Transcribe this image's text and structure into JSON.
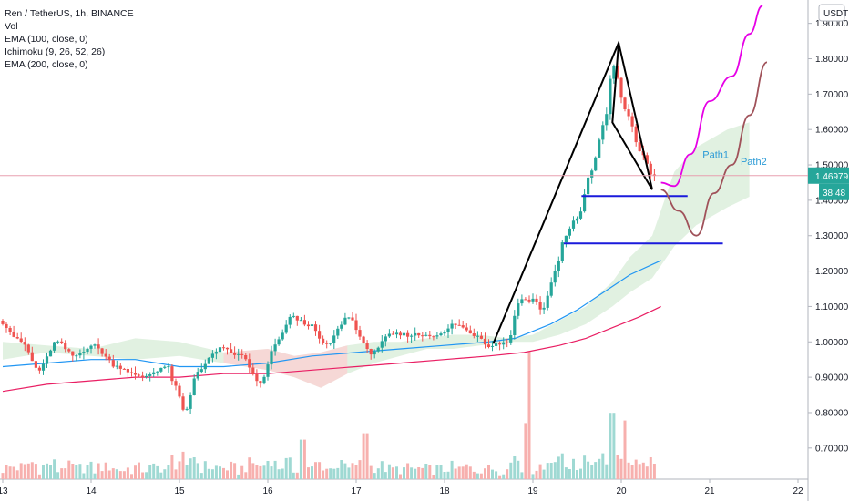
{
  "legend": {
    "symbol": "Ren / TetherUS, 1h, BINANCE",
    "vol": "Vol",
    "ema100": "EMA (100, close, 0)",
    "ichimoku": "Ichimoku (9, 26, 52, 26)",
    "ema200": "EMA (200, close, 0)"
  },
  "currency_badge": "USDT",
  "price_label": "1.46979",
  "countdown_label": "38:48",
  "colors": {
    "up": "#26a69a",
    "down": "#ef5350",
    "ema100": "#2196f3",
    "ema200": "#e91e63",
    "cloud_green": "#c8e6c9",
    "cloud_red": "#ffcdd2",
    "path1": "#e600e6",
    "path2": "#a0525a",
    "support": "#1a1adc",
    "pattern": "#000000",
    "label_text": "#2a9ad6",
    "current_price_bg": "#26a69a"
  },
  "chart_data": {
    "type": "candlestick",
    "title": "Ren / TetherUS, 1h, BINANCE",
    "y_axis": {
      "ylim": [
        0.612,
        1.966
      ],
      "ticks": [
        "0.70000",
        "0.80000",
        "0.90000",
        "1.00000",
        "1.10000",
        "1.20000",
        "1.30000",
        "1.40000",
        "1.50000",
        "1.60000",
        "1.70000",
        "1.80000",
        "1.90000"
      ],
      "tick_values": [
        0.7,
        0.8,
        0.9,
        1.0,
        1.1,
        1.2,
        1.3,
        1.4,
        1.5,
        1.6,
        1.7,
        1.8,
        1.9
      ]
    },
    "x_axis": {
      "range_days": [
        13.0,
        22.2
      ],
      "ticks": [
        "13",
        "14",
        "15",
        "16",
        "17",
        "18",
        "19",
        "20",
        "21",
        "22"
      ],
      "tick_values": [
        13,
        14,
        15,
        16,
        17,
        18,
        19,
        20,
        21,
        22
      ]
    },
    "current_price": 1.46979,
    "price_path": [
      [
        13.0,
        1.06
      ],
      [
        13.25,
        1.0
      ],
      [
        13.45,
        0.92
      ],
      [
        13.65,
        1.0
      ],
      [
        13.85,
        0.96
      ],
      [
        14.05,
        0.99
      ],
      [
        14.35,
        0.93
      ],
      [
        14.6,
        0.9
      ],
      [
        14.9,
        0.93
      ],
      [
        15.0,
        0.87
      ],
      [
        15.1,
        0.8
      ],
      [
        15.25,
        0.92
      ],
      [
        15.5,
        0.98
      ],
      [
        15.75,
        0.96
      ],
      [
        15.95,
        0.88
      ],
      [
        16.15,
        1.0
      ],
      [
        16.3,
        1.07
      ],
      [
        16.5,
        1.05
      ],
      [
        16.7,
        0.99
      ],
      [
        16.95,
        1.07
      ],
      [
        17.2,
        0.97
      ],
      [
        17.45,
        1.02
      ],
      [
        17.7,
        1.02
      ],
      [
        18.0,
        1.02
      ],
      [
        18.15,
        1.05
      ],
      [
        18.4,
        1.02
      ],
      [
        18.55,
        0.99
      ],
      [
        18.75,
        1.0
      ],
      [
        18.9,
        1.12
      ],
      [
        19.05,
        1.12
      ],
      [
        19.15,
        1.09
      ],
      [
        19.3,
        1.2
      ],
      [
        19.4,
        1.3
      ],
      [
        19.55,
        1.35
      ],
      [
        19.7,
        1.48
      ],
      [
        19.85,
        1.62
      ],
      [
        19.95,
        1.78
      ],
      [
        20.1,
        1.65
      ],
      [
        20.25,
        1.54
      ],
      [
        20.4,
        1.47
      ]
    ],
    "volume": {
      "visible_max": 1.0,
      "spikes": [
        [
          18.95,
          1.0
        ],
        [
          19.9,
          0.52
        ],
        [
          18.93,
          0.44
        ],
        [
          20.05,
          0.46
        ],
        [
          16.4,
          0.31
        ],
        [
          17.1,
          0.36
        ]
      ]
    },
    "ema100": [
      [
        13.0,
        0.93
      ],
      [
        13.5,
        0.94
      ],
      [
        14.0,
        0.95
      ],
      [
        14.5,
        0.95
      ],
      [
        15.0,
        0.93
      ],
      [
        15.5,
        0.93
      ],
      [
        16.0,
        0.94
      ],
      [
        16.5,
        0.96
      ],
      [
        17.0,
        0.97
      ],
      [
        17.5,
        0.98
      ],
      [
        18.0,
        0.99
      ],
      [
        18.5,
        1.0
      ],
      [
        18.8,
        1.01
      ],
      [
        19.2,
        1.05
      ],
      [
        19.5,
        1.09
      ],
      [
        19.8,
        1.14
      ],
      [
        20.1,
        1.19
      ],
      [
        20.45,
        1.23
      ]
    ],
    "ema200": [
      [
        13.0,
        0.86
      ],
      [
        13.5,
        0.88
      ],
      [
        14.0,
        0.89
      ],
      [
        14.5,
        0.9
      ],
      [
        15.0,
        0.9
      ],
      [
        15.5,
        0.91
      ],
      [
        16.0,
        0.91
      ],
      [
        16.5,
        0.92
      ],
      [
        17.0,
        0.93
      ],
      [
        17.5,
        0.94
      ],
      [
        18.0,
        0.95
      ],
      [
        18.5,
        0.96
      ],
      [
        18.9,
        0.97
      ],
      [
        19.3,
        0.99
      ],
      [
        19.6,
        1.01
      ],
      [
        19.9,
        1.04
      ],
      [
        20.2,
        1.07
      ],
      [
        20.45,
        1.1
      ]
    ],
    "ichimoku_cloud": {
      "upper": [
        [
          13.0,
          1.0
        ],
        [
          13.5,
          0.99
        ],
        [
          14.0,
          0.98
        ],
        [
          14.5,
          1.01
        ],
        [
          15.0,
          1.0
        ],
        [
          15.5,
          0.97
        ],
        [
          16.0,
          0.98
        ],
        [
          16.3,
          0.96
        ],
        [
          16.6,
          0.97
        ],
        [
          16.9,
          0.99
        ],
        [
          17.2,
          1.0
        ],
        [
          17.5,
          1.0
        ],
        [
          17.8,
          1.01
        ],
        [
          18.1,
          1.02
        ],
        [
          18.4,
          1.02
        ],
        [
          18.7,
          1.01
        ],
        [
          19.0,
          1.02
        ],
        [
          19.3,
          1.06
        ],
        [
          19.6,
          1.1
        ],
        [
          19.9,
          1.17
        ],
        [
          20.1,
          1.24
        ],
        [
          20.35,
          1.3
        ],
        [
          20.6,
          1.48
        ],
        [
          20.85,
          1.55
        ],
        [
          21.2,
          1.6
        ],
        [
          21.45,
          1.62
        ]
      ],
      "lower": [
        [
          13.0,
          0.95
        ],
        [
          13.5,
          0.97
        ],
        [
          14.0,
          0.96
        ],
        [
          14.5,
          0.95
        ],
        [
          15.0,
          0.96
        ],
        [
          15.5,
          0.94
        ],
        [
          16.0,
          0.92
        ],
        [
          16.3,
          0.9
        ],
        [
          16.6,
          0.87
        ],
        [
          16.9,
          0.91
        ],
        [
          17.2,
          0.94
        ],
        [
          17.5,
          0.96
        ],
        [
          17.8,
          0.98
        ],
        [
          18.1,
          0.98
        ],
        [
          18.4,
          0.99
        ],
        [
          18.7,
          1.0
        ],
        [
          19.0,
          1.0
        ],
        [
          19.3,
          1.02
        ],
        [
          19.6,
          1.05
        ],
        [
          19.9,
          1.1
        ],
        [
          20.1,
          1.14
        ],
        [
          20.35,
          1.18
        ],
        [
          20.6,
          1.27
        ],
        [
          20.85,
          1.33
        ],
        [
          21.2,
          1.38
        ],
        [
          21.45,
          1.41
        ]
      ]
    },
    "pattern_line": [
      [
        18.55,
        0.995
      ],
      [
        19.97,
        1.845
      ],
      [
        20.35,
        1.43
      ]
    ],
    "pattern_inner": [
      [
        19.97,
        1.845
      ],
      [
        19.9,
        1.62
      ],
      [
        20.35,
        1.43
      ]
    ],
    "support_levels": [
      {
        "price": 1.412,
        "from": 19.55,
        "to": 20.75
      },
      {
        "price": 1.278,
        "from": 19.35,
        "to": 21.15
      }
    ],
    "projections": [
      {
        "name": "Path1",
        "label_at": [
          20.92,
          1.52
        ],
        "points": [
          [
            20.45,
            1.45
          ],
          [
            20.6,
            1.44
          ],
          [
            20.78,
            1.53
          ],
          [
            21.0,
            1.68
          ],
          [
            21.25,
            1.75
          ],
          [
            21.45,
            1.87
          ],
          [
            21.6,
            1.95
          ]
        ]
      },
      {
        "name": "Path2",
        "label_at": [
          21.35,
          1.5
        ],
        "points": [
          [
            20.45,
            1.43
          ],
          [
            20.65,
            1.37
          ],
          [
            20.85,
            1.3
          ],
          [
            21.05,
            1.42
          ],
          [
            21.25,
            1.5
          ],
          [
            21.45,
            1.64
          ],
          [
            21.65,
            1.79
          ]
        ]
      }
    ]
  }
}
